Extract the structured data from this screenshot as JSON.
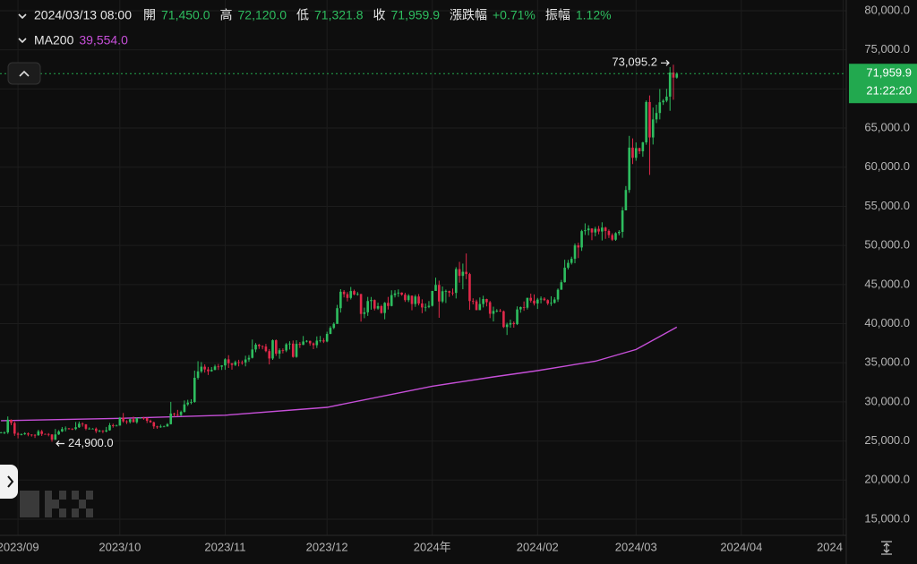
{
  "header": {
    "datetime": "2024/03/13 08:00",
    "fields": [
      {
        "label": "開",
        "value": "71,450.0"
      },
      {
        "label": "高",
        "value": "72,120.0"
      },
      {
        "label": "低",
        "value": "71,321.8"
      },
      {
        "label": "收",
        "value": "71,959.9"
      },
      {
        "label": "漲跌幅",
        "value": "+0.71%"
      },
      {
        "label": "振幅",
        "value": "1.12%"
      }
    ],
    "ma_value": "39,554.0"
  },
  "chart_data": {
    "type": "candlestick",
    "up_color": "#2ebd5f",
    "down_color": "#e0294a",
    "grid": true,
    "xlim": [
      -0.3,
      248.9
    ],
    "xticks": [
      {
        "value": 5,
        "label": "2023/09"
      },
      {
        "value": 35,
        "label": "2023/10"
      },
      {
        "value": 66,
        "label": "2023/11"
      },
      {
        "value": 96,
        "label": "2023/12"
      },
      {
        "value": 127,
        "label": "2024年"
      },
      {
        "value": 158,
        "label": "2024/02"
      },
      {
        "value": 187,
        "label": "2024/03"
      },
      {
        "value": 218,
        "label": "2024/04"
      },
      {
        "value": 248,
        "label": "2024"
      }
    ],
    "ylim": [
      12940,
      81370
    ],
    "yticks": [
      {
        "value": 15000,
        "label": "15,000.0"
      },
      {
        "value": 20000,
        "label": "20,000.0"
      },
      {
        "value": 25000,
        "label": "25,000.0"
      },
      {
        "value": 30000,
        "label": "30,000.0"
      },
      {
        "value": 35000,
        "label": "35,000.0"
      },
      {
        "value": 40000,
        "label": "40,000.0"
      },
      {
        "value": 45000,
        "label": "45,000.0"
      },
      {
        "value": 50000,
        "label": "50,000.0"
      },
      {
        "value": 55000,
        "label": "55,000.0"
      },
      {
        "value": 60000,
        "label": "60,000.0"
      },
      {
        "value": 65000,
        "label": "65,000.0"
      },
      {
        "value": 70000,
        "label": "70,000.0"
      },
      {
        "value": 75000,
        "label": "75,000.0"
      },
      {
        "value": 80000,
        "label": "80,000.0"
      }
    ],
    "annotations": [
      {
        "text": "73,095.2"
      },
      {
        "text": "24,900.0"
      }
    ],
    "current_price": {
      "label": "71,959.9",
      "countdown": "21:22:20",
      "color": "#22a94f"
    },
    "series": [
      {
        "name": "MA200",
        "color": "#c64fd8",
        "x": [
          0,
          35,
          66,
          96,
          127,
          145,
          158,
          175,
          187,
          199
        ],
        "values": [
          27600,
          27900,
          28300,
          29300,
          32000,
          33200,
          34000,
          35200,
          36700,
          39554
        ]
      }
    ],
    "candles": [
      [
        26010,
        26170,
        25980,
        26100
      ],
      [
        26100,
        26230,
        25880,
        26100
      ],
      [
        26100,
        28140,
        25910,
        27720
      ],
      [
        27720,
        27760,
        27020,
        27300
      ],
      [
        27300,
        27490,
        25660,
        25940
      ],
      [
        25940,
        26130,
        25340,
        25800
      ],
      [
        25800,
        25970,
        25720,
        25870
      ],
      [
        25870,
        26120,
        25780,
        25970
      ],
      [
        25970,
        26090,
        25610,
        25820
      ],
      [
        25820,
        25860,
        25570,
        25780
      ],
      [
        25780,
        25880,
        25390,
        25750
      ],
      [
        25750,
        26430,
        25640,
        26240
      ],
      [
        26240,
        26420,
        25650,
        25900
      ],
      [
        25900,
        25940,
        25820,
        25890
      ],
      [
        25890,
        26010,
        25600,
        25830
      ],
      [
        25830,
        25880,
        24900,
        25160
      ],
      [
        25160,
        26540,
        25130,
        25840
      ],
      [
        25840,
        26390,
        25770,
        26220
      ],
      [
        26220,
        26790,
        26140,
        26530
      ],
      [
        26530,
        26860,
        26230,
        26610
      ],
      [
        26610,
        26670,
        26470,
        26570
      ],
      [
        26570,
        26630,
        26400,
        26530
      ],
      [
        26530,
        27430,
        26400,
        26760
      ],
      [
        26760,
        27490,
        26670,
        27210
      ],
      [
        27210,
        27380,
        26840,
        27130
      ],
      [
        27130,
        27160,
        26380,
        26570
      ],
      [
        26570,
        26740,
        26490,
        26580
      ],
      [
        26580,
        26640,
        26510,
        26580
      ],
      [
        26580,
        26730,
        26010,
        26260
      ],
      [
        26260,
        26430,
        26120,
        26300
      ],
      [
        26300,
        26390,
        26000,
        26220
      ],
      [
        26220,
        26800,
        26110,
        26370
      ],
      [
        26370,
        27300,
        26320,
        27020
      ],
      [
        27020,
        27220,
        26710,
        26910
      ],
      [
        26910,
        27090,
        26890,
        26970
      ],
      [
        26970,
        28060,
        26970,
        27990
      ],
      [
        27990,
        28580,
        27330,
        27510
      ],
      [
        27510,
        27660,
        27170,
        27430
      ],
      [
        27430,
        27840,
        27240,
        27790
      ],
      [
        27790,
        28120,
        27370,
        27410
      ],
      [
        27410,
        28000,
        27220,
        27930
      ],
      [
        27930,
        28030,
        27860,
        27960
      ],
      [
        27960,
        28090,
        27720,
        27930
      ],
      [
        27930,
        27990,
        27300,
        27580
      ],
      [
        27580,
        27730,
        27330,
        27390
      ],
      [
        27390,
        27480,
        26560,
        26870
      ],
      [
        26870,
        26950,
        26560,
        26750
      ],
      [
        26750,
        27090,
        26690,
        26860
      ],
      [
        26860,
        26970,
        26810,
        26860
      ],
      [
        26860,
        27290,
        26830,
        27150
      ],
      [
        27150,
        30000,
        27120,
        28510
      ],
      [
        28510,
        28610,
        28110,
        28410
      ],
      [
        28410,
        28980,
        28150,
        28330
      ],
      [
        28330,
        28890,
        28190,
        28720
      ],
      [
        28720,
        30180,
        28640,
        29680
      ],
      [
        29680,
        30270,
        29480,
        29910
      ],
      [
        29910,
        30340,
        29700,
        29990
      ],
      [
        29990,
        34000,
        29890,
        33080
      ],
      [
        33080,
        35200,
        32850,
        33900
      ],
      [
        33900,
        35090,
        33700,
        34500
      ],
      [
        34500,
        34800,
        33740,
        34150
      ],
      [
        34150,
        34470,
        33440,
        33910
      ],
      [
        33910,
        34450,
        33860,
        34090
      ],
      [
        34090,
        34760,
        34040,
        34530
      ],
      [
        34530,
        34850,
        34080,
        34500
      ],
      [
        34500,
        34700,
        34080,
        34660
      ],
      [
        34660,
        35580,
        34100,
        35440
      ],
      [
        35440,
        35970,
        34340,
        34940
      ],
      [
        34940,
        34950,
        34120,
        34730
      ],
      [
        34730,
        35280,
        34580,
        35080
      ],
      [
        35080,
        35380,
        34540,
        35050
      ],
      [
        35050,
        35290,
        34750,
        35040
      ],
      [
        35040,
        35900,
        34540,
        35420
      ],
      [
        35420,
        35980,
        35120,
        35630
      ],
      [
        35630,
        37970,
        35550,
        36700
      ],
      [
        36700,
        37520,
        36350,
        37310
      ],
      [
        37310,
        37410,
        36770,
        37130
      ],
      [
        37130,
        37220,
        36720,
        37070
      ],
      [
        37070,
        37410,
        36350,
        36490
      ],
      [
        36490,
        36750,
        34790,
        35550
      ],
      [
        35550,
        37980,
        35370,
        37880
      ],
      [
        37880,
        37980,
        35880,
        36160
      ],
      [
        36160,
        36840,
        35520,
        36600
      ],
      [
        36600,
        36840,
        36200,
        36570
      ],
      [
        36570,
        37520,
        36360,
        37360
      ],
      [
        37360,
        37750,
        36700,
        37450
      ],
      [
        37450,
        37850,
        35650,
        35750
      ],
      [
        35750,
        37880,
        35640,
        37420
      ],
      [
        37420,
        37650,
        36890,
        37290
      ],
      [
        37290,
        38420,
        37260,
        37720
      ],
      [
        37720,
        37890,
        37600,
        37800
      ],
      [
        37800,
        37830,
        37180,
        37480
      ],
      [
        37480,
        37600,
        36740,
        37250
      ],
      [
        37250,
        38370,
        36890,
        37830
      ],
      [
        37830,
        38430,
        37600,
        37860
      ],
      [
        37860,
        38150,
        37520,
        37720
      ],
      [
        37720,
        38970,
        37620,
        38690
      ],
      [
        38690,
        39690,
        38650,
        39460
      ],
      [
        39460,
        40160,
        39300,
        39970
      ],
      [
        39970,
        42400,
        39970,
        41980
      ],
      [
        41980,
        44410,
        41420,
        44080
      ],
      [
        44080,
        44290,
        43350,
        43770
      ],
      [
        43770,
        44040,
        42840,
        43290
      ],
      [
        43290,
        44690,
        43090,
        44170
      ],
      [
        44170,
        44350,
        43630,
        43720
      ],
      [
        43720,
        44040,
        43580,
        43790
      ],
      [
        43790,
        43810,
        40260,
        41240
      ],
      [
        41240,
        42050,
        40700,
        41450
      ],
      [
        41450,
        43420,
        40990,
        42890
      ],
      [
        42890,
        43410,
        41790,
        43020
      ],
      [
        43020,
        43090,
        41690,
        41930
      ],
      [
        41930,
        42680,
        41760,
        42240
      ],
      [
        42240,
        42410,
        41280,
        41360
      ],
      [
        41360,
        42760,
        40560,
        42660
      ],
      [
        42660,
        43420,
        41810,
        42260
      ],
      [
        42260,
        44270,
        42210,
        43650
      ],
      [
        43650,
        44280,
        43350,
        43860
      ],
      [
        43860,
        44380,
        43420,
        43970
      ],
      [
        43970,
        44000,
        43570,
        43700
      ],
      [
        43700,
        43940,
        42780,
        43010
      ],
      [
        43010,
        43770,
        42760,
        43580
      ],
      [
        43580,
        43590,
        41710,
        42510
      ],
      [
        42510,
        43690,
        42150,
        43470
      ],
      [
        43470,
        43780,
        42330,
        42580
      ],
      [
        42580,
        43110,
        41340,
        42070
      ],
      [
        42070,
        42580,
        41570,
        42140
      ],
      [
        42140,
        42890,
        41980,
        42280
      ],
      [
        42280,
        44200,
        42190,
        44180
      ],
      [
        44180,
        45880,
        44180,
        44950
      ],
      [
        44950,
        45500,
        40750,
        42840
      ],
      [
        42840,
        44750,
        42640,
        44150
      ],
      [
        44150,
        44350,
        42640,
        44160
      ],
      [
        44160,
        44220,
        43420,
        43970
      ],
      [
        43970,
        44490,
        43590,
        43930
      ],
      [
        43930,
        47220,
        43220,
        46970
      ],
      [
        46970,
        47900,
        45240,
        46110
      ],
      [
        46110,
        47680,
        44400,
        46630
      ],
      [
        46630,
        48970,
        45690,
        46340
      ],
      [
        46340,
        46500,
        41770,
        42890
      ],
      [
        42890,
        43240,
        42460,
        42850
      ],
      [
        42850,
        43070,
        41720,
        41730
      ],
      [
        41730,
        43350,
        41730,
        42510
      ],
      [
        42510,
        43570,
        42070,
        43150
      ],
      [
        43150,
        43190,
        42210,
        42740
      ],
      [
        42740,
        42900,
        40710,
        41260
      ],
      [
        41260,
        42170,
        40280,
        41620
      ],
      [
        41620,
        41860,
        41450,
        41660
      ],
      [
        41660,
        41880,
        41500,
        41580
      ],
      [
        41580,
        41680,
        39440,
        39570
      ],
      [
        39570,
        40120,
        38550,
        39890
      ],
      [
        39890,
        40520,
        39480,
        40080
      ],
      [
        40080,
        40280,
        39490,
        39940
      ],
      [
        39940,
        42210,
        39820,
        41820
      ],
      [
        41820,
        42190,
        41400,
        42120
      ],
      [
        42120,
        42840,
        41640,
        42040
      ],
      [
        42040,
        43310,
        41810,
        43300
      ],
      [
        43300,
        43840,
        42690,
        42940
      ],
      [
        42940,
        43740,
        42320,
        42580
      ],
      [
        42580,
        43290,
        41880,
        43080
      ],
      [
        43080,
        43480,
        42590,
        43200
      ],
      [
        43200,
        43380,
        42890,
        43010
      ],
      [
        43010,
        43110,
        42370,
        42580
      ],
      [
        42580,
        43500,
        42270,
        42660
      ],
      [
        42660,
        43380,
        42570,
        43090
      ],
      [
        43090,
        44500,
        42780,
        44340
      ],
      [
        44340,
        45590,
        44330,
        45300
      ],
      [
        45300,
        48170,
        45250,
        47150
      ],
      [
        47150,
        48150,
        46920,
        47770
      ],
      [
        47770,
        48560,
        47560,
        48290
      ],
      [
        48290,
        50250,
        47720,
        50000
      ],
      [
        50000,
        50340,
        48380,
        49740
      ],
      [
        49740,
        52000,
        49300,
        51830
      ],
      [
        51830,
        52820,
        51340,
        51940
      ],
      [
        51940,
        52580,
        51290,
        52160
      ],
      [
        52160,
        52200,
        50670,
        51660
      ],
      [
        51660,
        52380,
        51170,
        52120
      ],
      [
        52120,
        52490,
        51420,
        51780
      ],
      [
        51780,
        52960,
        50630,
        52280
      ],
      [
        52280,
        52390,
        50840,
        51850
      ],
      [
        51850,
        52040,
        50950,
        51320
      ],
      [
        51320,
        51550,
        50570,
        50730
      ],
      [
        50730,
        51690,
        50590,
        51570
      ],
      [
        51570,
        51950,
        51280,
        51730
      ],
      [
        51730,
        54900,
        50970,
        54480
      ],
      [
        54480,
        57590,
        54480,
        57090
      ],
      [
        57090,
        64000,
        56720,
        62500
      ],
      [
        62500,
        63680,
        60400,
        61200
      ],
      [
        61200,
        63160,
        60820,
        62440
      ],
      [
        62440,
        62490,
        61680,
        62030
      ],
      [
        62030,
        63240,
        61330,
        63170
      ],
      [
        63170,
        68530,
        62870,
        68330
      ],
      [
        68330,
        69170,
        59010,
        63800
      ],
      [
        63800,
        67620,
        62900,
        66110
      ],
      [
        66110,
        67990,
        65640,
        66930
      ],
      [
        66930,
        69990,
        66110,
        68300
      ],
      [
        68300,
        68700,
        67960,
        68500
      ],
      [
        68500,
        70010,
        68300,
        69020
      ],
      [
        69020,
        72800,
        67210,
        72100
      ],
      [
        72100,
        73095.2,
        68620,
        71450
      ],
      [
        71450,
        72120,
        71321.8,
        71959.9
      ]
    ]
  }
}
